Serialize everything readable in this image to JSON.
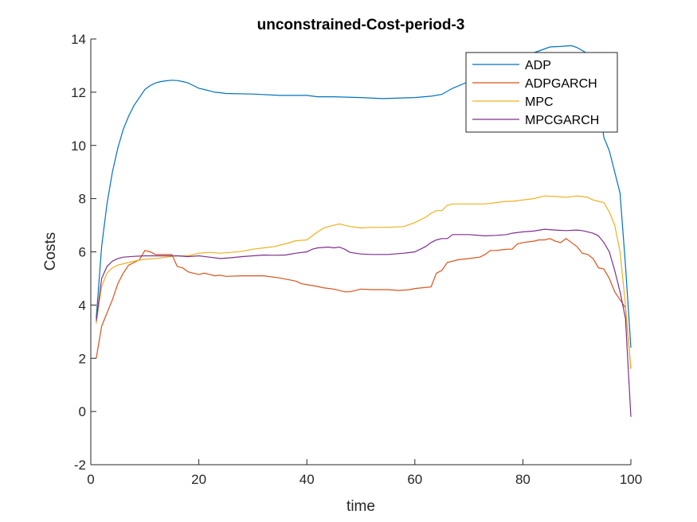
{
  "chart_data": {
    "type": "line",
    "title": "unconstrained-Cost-period-3",
    "xlabel": "time",
    "ylabel": "Costs",
    "xlim": [
      0,
      100
    ],
    "ylim": [
      -2,
      14
    ],
    "xticks": [
      0,
      20,
      40,
      60,
      80,
      100
    ],
    "yticks": [
      -2,
      0,
      2,
      4,
      6,
      8,
      10,
      12,
      14
    ],
    "grid": false,
    "legend_position": "top-right",
    "series": [
      {
        "name": "ADP",
        "color": "#0072BD",
        "points": [
          [
            1,
            3.5
          ],
          [
            2,
            6.2
          ],
          [
            3,
            7.8
          ],
          [
            4,
            9.0
          ],
          [
            5,
            9.9
          ],
          [
            6,
            10.6
          ],
          [
            7,
            11.1
          ],
          [
            8,
            11.5
          ],
          [
            9,
            11.8
          ],
          [
            10,
            12.1
          ],
          [
            11,
            12.25
          ],
          [
            12,
            12.35
          ],
          [
            13,
            12.4
          ],
          [
            14,
            12.43
          ],
          [
            15,
            12.45
          ],
          [
            16,
            12.44
          ],
          [
            17,
            12.4
          ],
          [
            18,
            12.35
          ],
          [
            19,
            12.25
          ],
          [
            20,
            12.15
          ],
          [
            21,
            12.1
          ],
          [
            22,
            12.05
          ],
          [
            23,
            12.0
          ],
          [
            24,
            11.98
          ],
          [
            25,
            11.95
          ],
          [
            30,
            11.93
          ],
          [
            35,
            11.88
          ],
          [
            40,
            11.88
          ],
          [
            42,
            11.83
          ],
          [
            45,
            11.83
          ],
          [
            50,
            11.8
          ],
          [
            54,
            11.76
          ],
          [
            60,
            11.8
          ],
          [
            63,
            11.85
          ],
          [
            65,
            11.92
          ],
          [
            67,
            12.15
          ],
          [
            70,
            12.4
          ],
          [
            73,
            12.75
          ],
          [
            76,
            13.05
          ],
          [
            80,
            13.35
          ],
          [
            83,
            13.55
          ],
          [
            85,
            13.7
          ],
          [
            87,
            13.72
          ],
          [
            89,
            13.75
          ],
          [
            90,
            13.68
          ],
          [
            92,
            13.45
          ],
          [
            93,
            13.0
          ],
          [
            94,
            11.8
          ],
          [
            95,
            10.3
          ],
          [
            96,
            9.8
          ],
          [
            97,
            9.0
          ],
          [
            98,
            8.2
          ],
          [
            99,
            5.5
          ],
          [
            100,
            2.4
          ]
        ]
      },
      {
        "name": "ADPGARCH",
        "color": "#D95319",
        "points": [
          [
            1,
            2.0
          ],
          [
            2,
            3.2
          ],
          [
            3,
            3.7
          ],
          [
            4,
            4.2
          ],
          [
            5,
            4.8
          ],
          [
            6,
            5.2
          ],
          [
            7,
            5.5
          ],
          [
            8,
            5.6
          ],
          [
            9,
            5.7
          ],
          [
            10,
            6.05
          ],
          [
            11,
            6.0
          ],
          [
            12,
            5.9
          ],
          [
            15,
            5.9
          ],
          [
            16,
            5.45
          ],
          [
            17,
            5.4
          ],
          [
            18,
            5.25
          ],
          [
            19,
            5.2
          ],
          [
            20,
            5.15
          ],
          [
            21,
            5.2
          ],
          [
            22,
            5.15
          ],
          [
            23,
            5.1
          ],
          [
            24,
            5.12
          ],
          [
            25,
            5.08
          ],
          [
            28,
            5.1
          ],
          [
            32,
            5.1
          ],
          [
            35,
            5.02
          ],
          [
            38,
            4.9
          ],
          [
            39,
            4.8
          ],
          [
            42,
            4.7
          ],
          [
            43,
            4.65
          ],
          [
            45,
            4.6
          ],
          [
            47,
            4.5
          ],
          [
            48,
            4.5
          ],
          [
            50,
            4.6
          ],
          [
            52,
            4.58
          ],
          [
            55,
            4.58
          ],
          [
            57,
            4.55
          ],
          [
            59,
            4.58
          ],
          [
            60,
            4.62
          ],
          [
            63,
            4.68
          ],
          [
            64,
            5.2
          ],
          [
            65,
            5.3
          ],
          [
            66,
            5.6
          ],
          [
            68,
            5.7
          ],
          [
            70,
            5.75
          ],
          [
            72,
            5.8
          ],
          [
            73,
            5.9
          ],
          [
            74,
            6.05
          ],
          [
            75,
            6.05
          ],
          [
            77,
            6.1
          ],
          [
            78,
            6.1
          ],
          [
            79,
            6.3
          ],
          [
            80,
            6.35
          ],
          [
            82,
            6.4
          ],
          [
            83,
            6.45
          ],
          [
            84,
            6.45
          ],
          [
            85,
            6.5
          ],
          [
            86,
            6.4
          ],
          [
            87,
            6.35
          ],
          [
            88,
            6.5
          ],
          [
            89,
            6.35
          ],
          [
            90,
            6.2
          ],
          [
            91,
            5.95
          ],
          [
            92,
            5.9
          ],
          [
            93,
            5.75
          ],
          [
            94,
            5.4
          ],
          [
            95,
            5.35
          ],
          [
            96,
            5.0
          ],
          [
            97,
            4.5
          ],
          [
            98,
            4.2
          ],
          [
            99,
            3.9
          ],
          [
            100,
            1.6
          ]
        ]
      },
      {
        "name": "MPC",
        "color": "#EDB120",
        "points": [
          [
            1,
            3.3
          ],
          [
            2,
            4.7
          ],
          [
            3,
            5.2
          ],
          [
            4,
            5.4
          ],
          [
            5,
            5.5
          ],
          [
            6,
            5.55
          ],
          [
            8,
            5.65
          ],
          [
            10,
            5.72
          ],
          [
            12,
            5.75
          ],
          [
            14,
            5.8
          ],
          [
            16,
            5.85
          ],
          [
            18,
            5.85
          ],
          [
            20,
            5.95
          ],
          [
            22,
            5.98
          ],
          [
            24,
            5.95
          ],
          [
            26,
            5.98
          ],
          [
            28,
            6.02
          ],
          [
            30,
            6.1
          ],
          [
            32,
            6.15
          ],
          [
            34,
            6.2
          ],
          [
            36,
            6.3
          ],
          [
            38,
            6.42
          ],
          [
            40,
            6.45
          ],
          [
            41,
            6.6
          ],
          [
            42,
            6.75
          ],
          [
            43,
            6.88
          ],
          [
            44,
            6.95
          ],
          [
            45,
            7.0
          ],
          [
            46,
            7.05
          ],
          [
            47,
            7.0
          ],
          [
            48,
            6.95
          ],
          [
            50,
            6.9
          ],
          [
            52,
            6.92
          ],
          [
            55,
            6.92
          ],
          [
            58,
            6.95
          ],
          [
            60,
            7.1
          ],
          [
            62,
            7.3
          ],
          [
            63,
            7.45
          ],
          [
            64,
            7.55
          ],
          [
            65,
            7.55
          ],
          [
            66,
            7.75
          ],
          [
            67,
            7.8
          ],
          [
            70,
            7.8
          ],
          [
            73,
            7.8
          ],
          [
            75,
            7.85
          ],
          [
            77,
            7.9
          ],
          [
            78,
            7.9
          ],
          [
            80,
            7.95
          ],
          [
            82,
            8.0
          ],
          [
            84,
            8.1
          ],
          [
            86,
            8.08
          ],
          [
            88,
            8.05
          ],
          [
            90,
            8.1
          ],
          [
            91,
            8.08
          ],
          [
            92,
            8.05
          ],
          [
            93,
            7.95
          ],
          [
            94,
            7.9
          ],
          [
            95,
            7.85
          ],
          [
            96,
            7.5
          ],
          [
            97,
            7.0
          ],
          [
            98,
            6.0
          ],
          [
            99,
            4.0
          ],
          [
            100,
            1.6
          ]
        ]
      },
      {
        "name": "MPCGARCH",
        "color": "#7E2F8E",
        "points": [
          [
            1,
            3.4
          ],
          [
            2,
            5.0
          ],
          [
            3,
            5.45
          ],
          [
            4,
            5.65
          ],
          [
            5,
            5.75
          ],
          [
            6,
            5.8
          ],
          [
            8,
            5.83
          ],
          [
            10,
            5.85
          ],
          [
            14,
            5.85
          ],
          [
            16,
            5.85
          ],
          [
            18,
            5.82
          ],
          [
            20,
            5.85
          ],
          [
            22,
            5.8
          ],
          [
            24,
            5.75
          ],
          [
            26,
            5.78
          ],
          [
            28,
            5.82
          ],
          [
            30,
            5.85
          ],
          [
            32,
            5.88
          ],
          [
            34,
            5.87
          ],
          [
            36,
            5.88
          ],
          [
            38,
            5.95
          ],
          [
            40,
            6.0
          ],
          [
            41,
            6.1
          ],
          [
            42,
            6.15
          ],
          [
            44,
            6.18
          ],
          [
            45,
            6.15
          ],
          [
            46,
            6.18
          ],
          [
            47,
            6.1
          ],
          [
            48,
            5.98
          ],
          [
            50,
            5.92
          ],
          [
            52,
            5.9
          ],
          [
            55,
            5.9
          ],
          [
            58,
            5.95
          ],
          [
            60,
            6.0
          ],
          [
            61,
            6.1
          ],
          [
            62,
            6.2
          ],
          [
            63,
            6.35
          ],
          [
            64,
            6.45
          ],
          [
            65,
            6.5
          ],
          [
            66,
            6.5
          ],
          [
            67,
            6.65
          ],
          [
            70,
            6.65
          ],
          [
            73,
            6.6
          ],
          [
            75,
            6.62
          ],
          [
            77,
            6.65
          ],
          [
            78,
            6.7
          ],
          [
            80,
            6.75
          ],
          [
            82,
            6.78
          ],
          [
            84,
            6.85
          ],
          [
            86,
            6.82
          ],
          [
            88,
            6.8
          ],
          [
            90,
            6.82
          ],
          [
            91,
            6.8
          ],
          [
            92,
            6.75
          ],
          [
            93,
            6.7
          ],
          [
            94,
            6.6
          ],
          [
            95,
            6.35
          ],
          [
            96,
            6.0
          ],
          [
            97,
            5.3
          ],
          [
            98,
            4.5
          ],
          [
            99,
            3.5
          ],
          [
            100,
            -0.2
          ]
        ]
      }
    ]
  }
}
